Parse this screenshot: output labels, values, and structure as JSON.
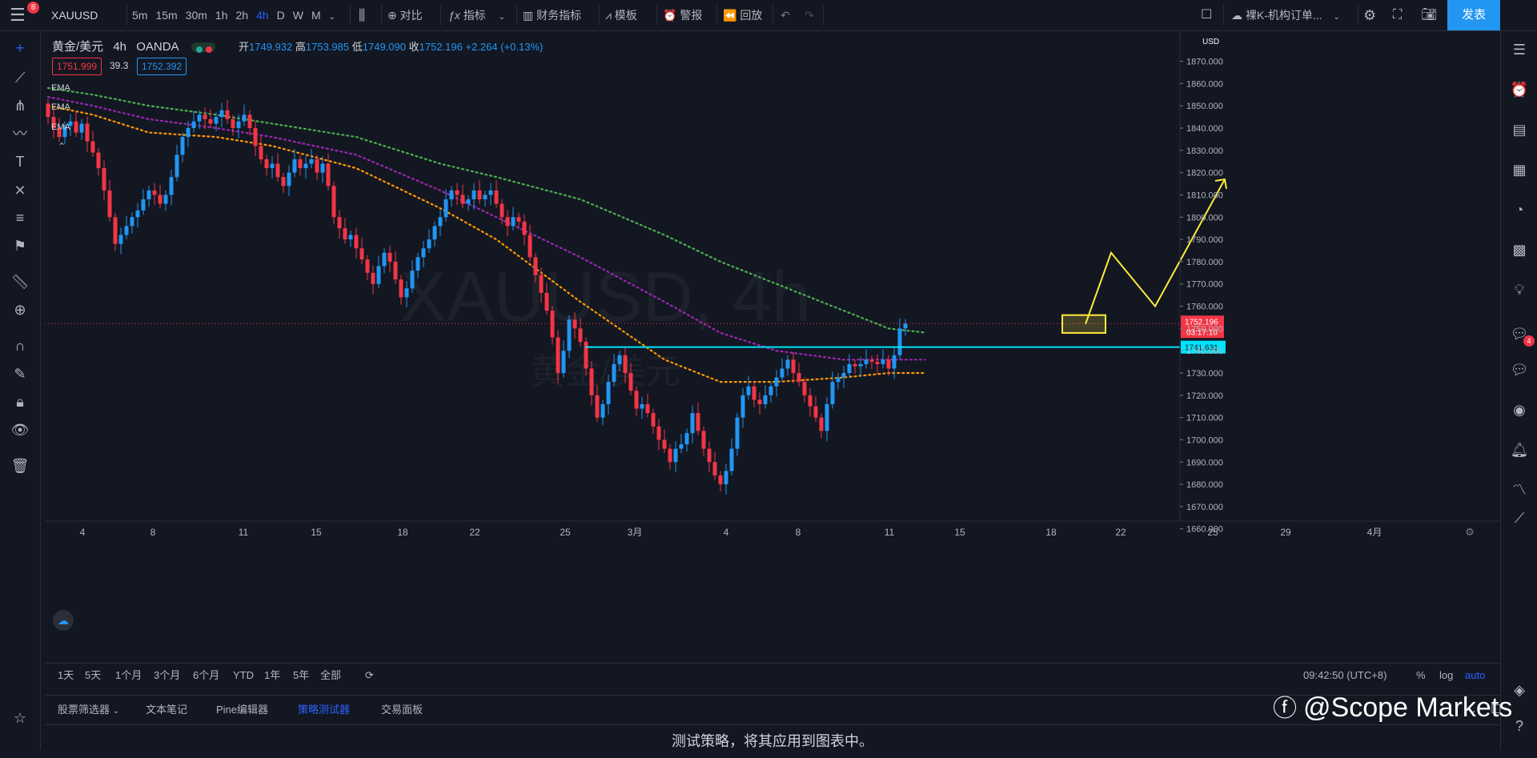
{
  "topbar": {
    "menu_badge": "8",
    "symbol": "XAUUSD",
    "intervals": [
      "5m",
      "15m",
      "30m",
      "1h",
      "2h",
      "4h",
      "D",
      "W",
      "M"
    ],
    "active_interval": "4h",
    "compare": "对比",
    "indicators": "指标",
    "financials": "财务指标",
    "templates": "模板",
    "alert": "警报",
    "replay": "回放",
    "layout_name": "裸K-机构订单...",
    "publish": "发表"
  },
  "legend": {
    "title": "黄金/美元",
    "interval": "4h",
    "exchange": "OANDA",
    "open_label": "开",
    "open": "1749.932",
    "high_label": "高",
    "high": "1753.985",
    "low_label": "低",
    "low": "1749.090",
    "close_label": "收",
    "close": "1752.196",
    "change": "+2.264 (+0.13%)",
    "bid": "1751.999",
    "spread": "39.3",
    "ask": "1752.392",
    "ema_labels": [
      "EMA",
      "EMA",
      "EMA"
    ]
  },
  "chart_data": {
    "type": "candlestick",
    "symbol": "XAUUSD, 4h",
    "watermark_sub": "黄金/美元",
    "currency": "USD",
    "ylim": [
      1655,
      1880
    ],
    "y_ticks": [
      "1870.000",
      "1860.000",
      "1850.000",
      "1840.000",
      "1830.000",
      "1820.000",
      "1810.000",
      "1800.000",
      "1790.000",
      "1780.000",
      "1770.000",
      "1760.000",
      "1750.000",
      "1740.000",
      "1730.000",
      "1720.000",
      "1710.000",
      "1700.000",
      "1690.000",
      "1680.000",
      "1670.000",
      "1660.000"
    ],
    "x_ticks": [
      "4",
      "8",
      "11",
      "15",
      "18",
      "22",
      "25",
      "3月",
      "4",
      "8",
      "11",
      "15",
      "18",
      "22",
      "25",
      "29",
      "4月"
    ],
    "close_series": [
      1845,
      1840,
      1836,
      1841,
      1843,
      1838,
      1842,
      1834,
      1829,
      1822,
      1812,
      1800,
      1788,
      1792,
      1796,
      1800,
      1803,
      1808,
      1812,
      1810,
      1806,
      1810,
      1818,
      1828,
      1836,
      1840,
      1843,
      1846,
      1844,
      1842,
      1845,
      1848,
      1844,
      1840,
      1843,
      1846,
      1840,
      1832,
      1826,
      1822,
      1824,
      1818,
      1814,
      1820,
      1826,
      1822,
      1824,
      1826,
      1820,
      1824,
      1814,
      1800,
      1795,
      1790,
      1792,
      1786,
      1781,
      1775,
      1770,
      1778,
      1784,
      1780,
      1772,
      1764,
      1768,
      1776,
      1782,
      1786,
      1790,
      1796,
      1800,
      1808,
      1812,
      1810,
      1806,
      1808,
      1812,
      1808,
      1810,
      1812,
      1806,
      1800,
      1796,
      1800,
      1798,
      1792,
      1782,
      1774,
      1766,
      1758,
      1746,
      1730,
      1740,
      1754,
      1750,
      1744,
      1732,
      1720,
      1710,
      1716,
      1726,
      1734,
      1738,
      1730,
      1722,
      1714,
      1716,
      1712,
      1706,
      1700,
      1696,
      1690,
      1696,
      1698,
      1703,
      1712,
      1704,
      1696,
      1690,
      1684,
      1680,
      1686,
      1696,
      1710,
      1720,
      1724,
      1718,
      1716,
      1720,
      1724,
      1728,
      1732,
      1736,
      1730,
      1726,
      1720,
      1715,
      1710,
      1704,
      1716,
      1726,
      1728,
      1730,
      1734,
      1733,
      1734,
      1736,
      1735,
      1734,
      1736,
      1732,
      1738,
      1750,
      1752.2
    ],
    "ema_green": [
      [
        0,
        1858
      ],
      [
        8,
        1855
      ],
      [
        18,
        1850
      ],
      [
        30,
        1846
      ],
      [
        40,
        1842
      ],
      [
        55,
        1836
      ],
      [
        70,
        1824
      ],
      [
        80,
        1818
      ],
      [
        95,
        1808
      ],
      [
        110,
        1792
      ],
      [
        120,
        1780
      ],
      [
        130,
        1770
      ],
      [
        142,
        1758
      ],
      [
        150,
        1750
      ],
      [
        157,
        1748
      ]
    ],
    "ema_purple": [
      [
        0,
        1854
      ],
      [
        8,
        1850
      ],
      [
        18,
        1844
      ],
      [
        30,
        1840
      ],
      [
        40,
        1836
      ],
      [
        55,
        1828
      ],
      [
        70,
        1812
      ],
      [
        80,
        1800
      ],
      [
        95,
        1782
      ],
      [
        110,
        1762
      ],
      [
        120,
        1748
      ],
      [
        130,
        1740
      ],
      [
        142,
        1736
      ],
      [
        150,
        1736
      ],
      [
        157,
        1736
      ]
    ],
    "ema_orange": [
      [
        0,
        1850
      ],
      [
        8,
        1846
      ],
      [
        18,
        1838
      ],
      [
        30,
        1836
      ],
      [
        40,
        1832
      ],
      [
        55,
        1822
      ],
      [
        70,
        1804
      ],
      [
        80,
        1790
      ],
      [
        95,
        1762
      ],
      [
        110,
        1736
      ],
      [
        120,
        1726
      ],
      [
        130,
        1726
      ],
      [
        142,
        1728
      ],
      [
        150,
        1730
      ],
      [
        157,
        1730
      ]
    ],
    "support_level": "1741.631",
    "last_price": "1752.196",
    "countdown": "03:17:10",
    "projection_prices": [
      1752,
      1784,
      1760,
      1817
    ]
  },
  "bottombar": {
    "ranges": [
      "1天",
      "5天",
      "1个月",
      "3个月",
      "6个月",
      "YTD",
      "1年",
      "5年",
      "全部"
    ],
    "time": "09:42:50 (UTC+8)",
    "percent": "%",
    "log": "log",
    "auto": "auto"
  },
  "tabs": [
    "股票筛选器",
    "文本笔记",
    "Pine编辑器",
    "策略测试器",
    "交易面板"
  ],
  "active_tab": "策略测试器",
  "bottom_message": "测试策略，将其应用到图表中。",
  "watermark": "@Scope Markets",
  "chat_badge": "4",
  "colors": {
    "background": "#131722",
    "up": "#2196f3",
    "down": "#f23645",
    "ema_green": "#4caf50",
    "ema_purple": "#9c27b0",
    "ema_orange": "#ff9800",
    "support_line": "#00e5ff",
    "annotation": "#ffeb3b",
    "accent": "#2962ff"
  }
}
